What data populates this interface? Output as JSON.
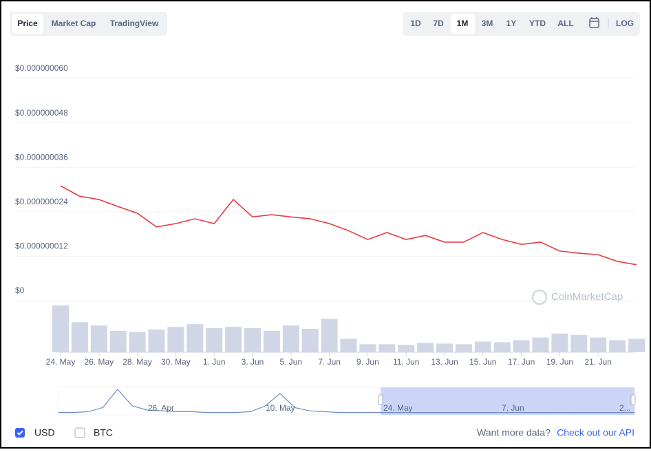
{
  "tabs": [
    "Price",
    "Market Cap",
    "TradingView"
  ],
  "ranges": [
    "1D",
    "7D",
    "1M",
    "3M",
    "1Y",
    "YTD",
    "ALL"
  ],
  "scale": "LOG",
  "watermark": "CoinMarketCap",
  "chart_data": {
    "type": "line",
    "categories": [
      "24. May",
      null,
      "26. May",
      null,
      "28. May",
      null,
      "30. May",
      null,
      "1. Jun",
      null,
      "3. Jun",
      null,
      "5. Jun",
      null,
      "7. Jun",
      null,
      "9. Jun",
      null,
      "11. Jun",
      null,
      "13. Jun",
      null,
      "15. Jun",
      null,
      "17. Jun",
      null,
      "19. Jun",
      null,
      "21. Jun",
      null,
      null
    ],
    "series": [
      {
        "color": "#ea3943",
        "values": [
          2.84e-08,
          2.56e-08,
          2.47e-08,
          2.28e-08,
          2.1e-08,
          1.73e-08,
          1.82e-08,
          1.95e-08,
          1.82e-08,
          2.47e-08,
          2e-08,
          2.06e-08,
          2e-08,
          1.95e-08,
          1.82e-08,
          1.63e-08,
          1.39e-08,
          1.58e-08,
          1.39e-08,
          1.5e-08,
          1.32e-08,
          1.32e-08,
          1.58e-08,
          1.39e-08,
          1.26e-08,
          1.32e-08,
          1.08e-08,
          1.02e-08,
          9.8e-09,
          8e-09,
          7.1e-09
        ]
      }
    ],
    "volume": {
      "color": "#d1d6e6",
      "values": [
        70,
        45,
        40,
        32,
        30,
        34,
        38,
        42,
        36,
        38,
        36,
        32,
        40,
        35,
        50,
        20,
        12,
        12,
        11,
        14,
        13,
        12,
        16,
        15,
        18,
        22,
        28,
        26,
        22,
        18,
        20
      ]
    },
    "ylim": [
      0,
      6.5e-08
    ],
    "yticks": [
      {
        "value": 0,
        "label": "$0"
      },
      {
        "value": 1.2e-08,
        "label": "$0.000000012"
      },
      {
        "value": 2.4e-08,
        "label": "$0.000000024"
      },
      {
        "value": 3.6e-08,
        "label": "$0.000000036"
      },
      {
        "value": 4.8e-08,
        "label": "$0.000000048"
      },
      {
        "value": 6e-08,
        "label": "$0.000000060"
      }
    ],
    "grid": true
  },
  "navigator": {
    "labels": [
      "26. Apr",
      "10. May",
      "24. May",
      "7. Jun",
      "2..."
    ],
    "values": [
      2,
      2,
      3,
      8,
      30,
      10,
      5,
      4,
      3,
      3,
      2,
      2,
      2,
      3,
      10,
      25,
      8,
      4,
      3,
      2,
      2,
      2,
      2,
      2,
      2,
      2,
      2,
      2,
      2,
      2,
      2,
      2,
      2,
      2,
      2,
      2,
      2,
      2,
      2,
      2
    ]
  },
  "footer": {
    "currencies": [
      "USD",
      "BTC"
    ],
    "prompt": "Want more data?",
    "link": "Check out our API"
  }
}
